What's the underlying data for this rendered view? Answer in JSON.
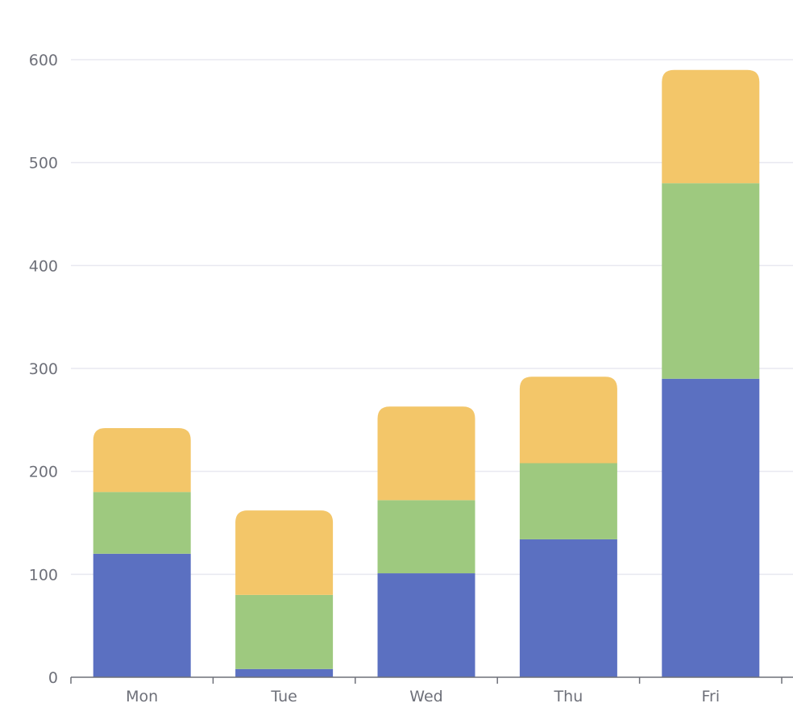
{
  "chart_data": {
    "type": "bar",
    "stacked": true,
    "categories": [
      "Mon",
      "Tue",
      "Wed",
      "Thu",
      "Fri"
    ],
    "series": [
      {
        "values": [
          120,
          8,
          101,
          134,
          290
        ],
        "color": "#5b70c1"
      },
      {
        "values": [
          60,
          72,
          71,
          74,
          190
        ],
        "color": "#9ec97f"
      },
      {
        "values": [
          62,
          82,
          91,
          84,
          110
        ],
        "color": "#f3c669"
      }
    ],
    "ylim": [
      0,
      600
    ],
    "yticks": [
      0,
      100,
      200,
      300,
      400,
      500,
      600
    ],
    "grid": true,
    "legend": "none",
    "title": "",
    "xlabel": "",
    "ylabel": ""
  }
}
